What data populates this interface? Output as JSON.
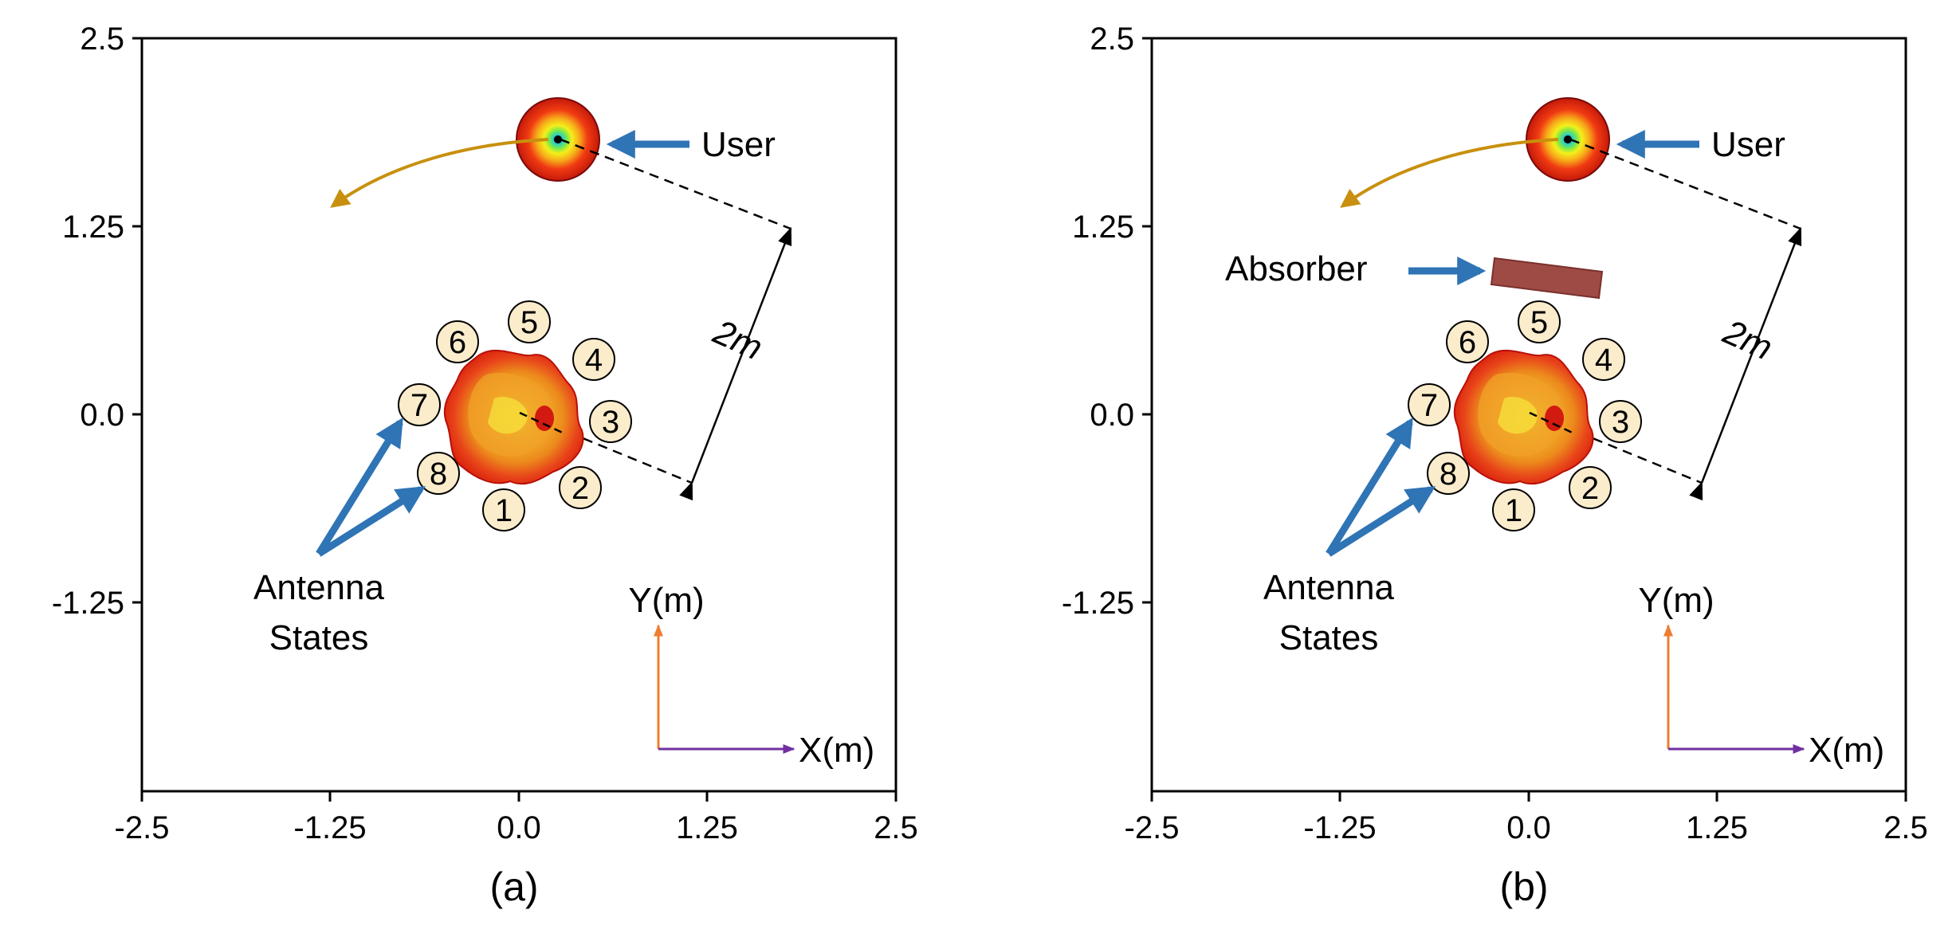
{
  "panels": [
    {
      "caption": "(a)",
      "x_ticks": [
        "-2.5",
        "-1.25",
        "0.0",
        "1.25",
        "2.5"
      ],
      "y_ticks": [
        "2.5",
        "1.25",
        "0.0",
        "-1.25"
      ],
      "user_label": "User",
      "distance_label": "2m",
      "antenna_label_line1": "Antenna",
      "antenna_label_line2": "States",
      "axis_y_label": "Y(m)",
      "axis_x_label": "X(m)",
      "antenna_states": [
        "1",
        "2",
        "3",
        "4",
        "5",
        "6",
        "7",
        "8"
      ]
    },
    {
      "caption": "(b)",
      "x_ticks": [
        "-2.5",
        "-1.25",
        "0.0",
        "1.25",
        "2.5"
      ],
      "y_ticks": [
        "2.5",
        "1.25",
        "0.0",
        "-1.25"
      ],
      "user_label": "User",
      "distance_label": "2m",
      "absorber_label": "Absorber",
      "antenna_label_line1": "Antenna",
      "antenna_label_line2": "States",
      "axis_y_label": "Y(m)",
      "axis_x_label": "X(m)",
      "antenna_states": [
        "1",
        "2",
        "3",
        "4",
        "5",
        "6",
        "7",
        "8"
      ]
    }
  ],
  "colors": {
    "state_fill": "#fbeccb",
    "arrow_blue": "#2f74b5",
    "user_arc": "#c8900e",
    "y_axis_arrow": "#ee7d31",
    "x_axis_arrow": "#7130a0",
    "absorber": "#9e4a45"
  }
}
